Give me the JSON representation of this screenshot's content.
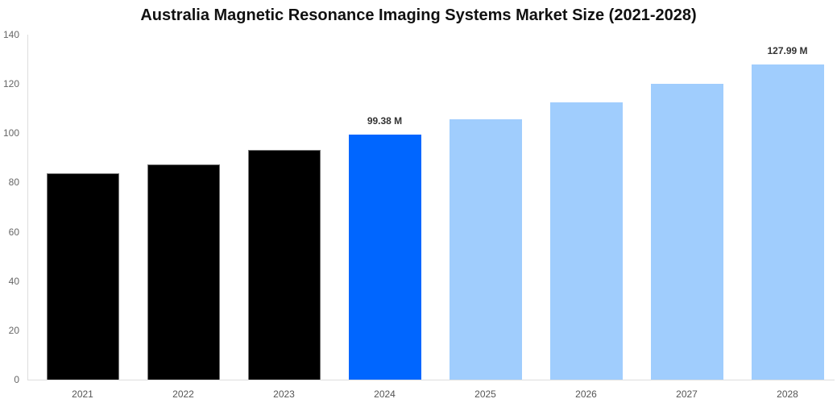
{
  "title": "Australia Magnetic Resonance Imaging Systems Market Size (2021-2028)",
  "colors": {
    "historical": "#000000",
    "base_year": "#0066ff",
    "forecast": "#a0cdfd"
  },
  "chart_data": {
    "type": "bar",
    "title": "Australia Magnetic Resonance Imaging Systems Market Size (2021-2028)",
    "xlabel": "",
    "ylabel": "",
    "ylim": [
      0,
      140
    ],
    "yticks": [
      0,
      20,
      40,
      60,
      80,
      100,
      120,
      140
    ],
    "grid": false,
    "legend": null,
    "categories": [
      "2021",
      "2022",
      "2023",
      "2024",
      "2025",
      "2026",
      "2027",
      "2028"
    ],
    "values": [
      83.6,
      87.2,
      93.1,
      99.38,
      105.7,
      112.5,
      119.9,
      127.99
    ],
    "bar_kinds": [
      "historical",
      "historical",
      "historical",
      "base_year",
      "forecast",
      "forecast",
      "forecast",
      "forecast"
    ],
    "annotations": [
      {
        "category": "2024",
        "text": "99.38 M"
      },
      {
        "category": "2028",
        "text": "127.99 M"
      }
    ]
  }
}
